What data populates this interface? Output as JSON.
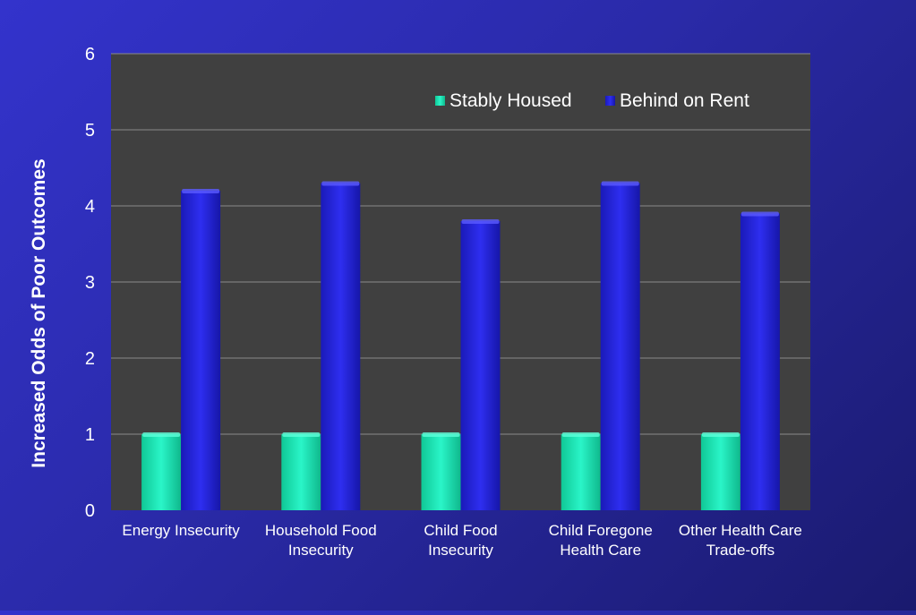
{
  "chart_data": {
    "type": "bar",
    "title": "",
    "xlabel": "",
    "ylabel": "Increased Odds of Poor Outcomes",
    "ylim": [
      0,
      6
    ],
    "yticks": [
      0,
      1,
      2,
      3,
      4,
      5,
      6
    ],
    "grid": true,
    "legend_position": "top-right",
    "categories": [
      [
        "Energy Insecurity"
      ],
      [
        "Household Food",
        "Insecurity"
      ],
      [
        "Child Food",
        "Insecurity"
      ],
      [
        "Child Foregone",
        "Health Care"
      ],
      [
        "Other Health Care",
        "Trade-offs"
      ]
    ],
    "series": [
      {
        "name": "Stably Housed",
        "values": [
          1,
          1,
          1,
          1,
          1
        ],
        "color": "#19e6b4"
      },
      {
        "name": "Behind on Rent",
        "values": [
          4.2,
          4.3,
          3.8,
          4.3,
          3.9
        ],
        "color": "#2323e0"
      }
    ],
    "colors": {
      "plot_background": "#404040",
      "gridline": "#8a8a8a",
      "text": "#ffffff"
    }
  }
}
